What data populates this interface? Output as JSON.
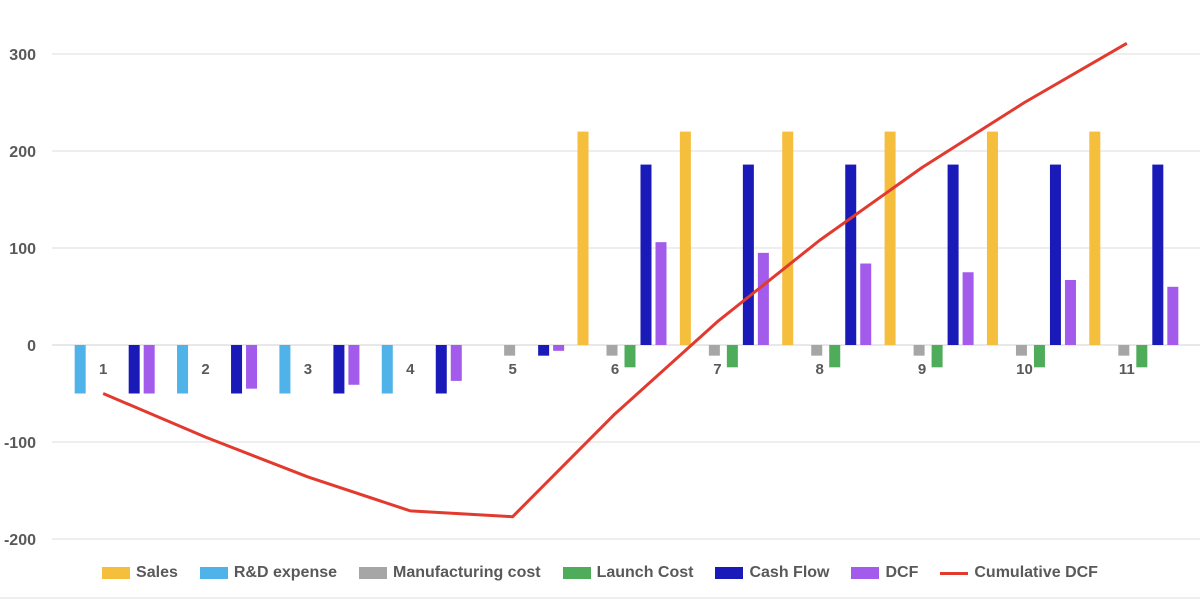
{
  "chart_data": {
    "type": "bar",
    "title": "",
    "xlabel": "",
    "ylabel": "",
    "ylim": [
      -200,
      300
    ],
    "yticks": [
      300,
      200,
      100,
      0,
      -100,
      -200
    ],
    "grid": true,
    "legend_position": "bottom",
    "categories": [
      "1",
      "2",
      "3",
      "4",
      "5",
      "6",
      "7",
      "8",
      "9",
      "10",
      "11"
    ],
    "series": [
      {
        "name": "Sales",
        "type": "bar",
        "color": "#F5BE3C",
        "values": [
          0,
          0,
          0,
          0,
          0,
          220,
          220,
          220,
          220,
          220,
          220
        ]
      },
      {
        "name": "R&D expense",
        "type": "bar",
        "color": "#4FB3EA",
        "values": [
          -50,
          -50,
          -50,
          -50,
          0,
          0,
          0,
          0,
          0,
          0,
          0
        ]
      },
      {
        "name": "Manufacturing cost",
        "type": "bar",
        "color": "#A6A6A6",
        "values": [
          0,
          0,
          0,
          0,
          -11,
          -11,
          -11,
          -11,
          -11,
          -11,
          -11
        ]
      },
      {
        "name": "Launch Cost",
        "type": "bar",
        "color": "#4EAC5B",
        "values": [
          0,
          0,
          0,
          0,
          0,
          -23,
          -23,
          -23,
          -23,
          -23,
          -23
        ]
      },
      {
        "name": "Cash Flow",
        "type": "bar",
        "color": "#1A1AB8",
        "values": [
          -50,
          -50,
          -50,
          -50,
          -11,
          186,
          186,
          186,
          186,
          186,
          186
        ]
      },
      {
        "name": "DCF",
        "type": "bar",
        "color": "#A25BEA",
        "values": [
          -50,
          -45,
          -41,
          -37,
          -6,
          106,
          95,
          84,
          75,
          67,
          60
        ]
      },
      {
        "name": "Cumulative DCF",
        "type": "line",
        "color": "#E23A2E",
        "values": [
          -50,
          -95,
          -136,
          -171,
          -177,
          -71,
          24,
          108,
          183,
          250,
          311
        ]
      }
    ]
  }
}
